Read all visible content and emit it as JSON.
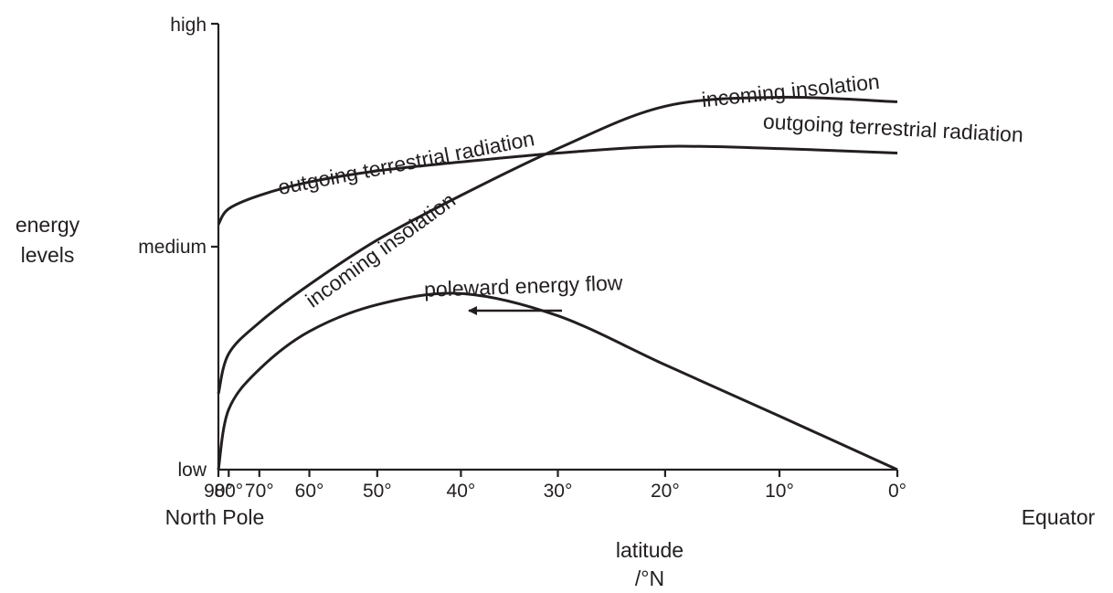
{
  "chart_data": {
    "type": "line",
    "title": "",
    "xlabel": "latitude",
    "xlabel_unit": "/°N",
    "ylabel": "energy levels",
    "ylabel_lines": [
      "energy",
      "levels"
    ],
    "x_ticks": [
      {
        "value": 90,
        "label": "90°"
      },
      {
        "value": 80,
        "label": "80°"
      },
      {
        "value": 70,
        "label": "70°"
      },
      {
        "value": 60,
        "label": "60°"
      },
      {
        "value": 50,
        "label": "50°"
      },
      {
        "value": 40,
        "label": "40°"
      },
      {
        "value": 30,
        "label": "30°"
      },
      {
        "value": 20,
        "label": "20°"
      },
      {
        "value": 10,
        "label": "10°"
      },
      {
        "value": 0,
        "label": "0°"
      }
    ],
    "x_end_labels": {
      "left": "North Pole",
      "right": "Equator"
    },
    "y_ticks": [
      {
        "value": 0,
        "label": "low"
      },
      {
        "value": 1,
        "label": "medium"
      },
      {
        "value": 2,
        "label": "high"
      }
    ],
    "xlim": [
      90,
      0
    ],
    "ylim": [
      0,
      2
    ],
    "x_scale": "sine of latitude (poleward latitudes compressed)",
    "grid": false,
    "series": [
      {
        "name": "outgoing terrestrial radiation",
        "x": [
          90,
          80,
          70,
          60,
          50,
          40,
          30,
          20,
          10,
          0
        ],
        "y": [
          1.1,
          1.17,
          1.23,
          1.29,
          1.34,
          1.38,
          1.42,
          1.45,
          1.44,
          1.42
        ]
      },
      {
        "name": "incoming insolation",
        "x": [
          90,
          80,
          70,
          60,
          50,
          40,
          30,
          20,
          10,
          0
        ],
        "y": [
          0.34,
          0.52,
          0.66,
          0.83,
          1.03,
          1.23,
          1.44,
          1.63,
          1.67,
          1.65
        ]
      },
      {
        "name": "poleward energy flow",
        "x": [
          90,
          80,
          70,
          60,
          50,
          40,
          30,
          20,
          10,
          0
        ],
        "y": [
          0.0,
          0.27,
          0.45,
          0.62,
          0.74,
          0.79,
          0.69,
          0.47,
          0.24,
          0.0
        ]
      }
    ],
    "annotations": [
      {
        "text": "outgoing terrestrial radiation"
      },
      {
        "text": "incoming insolation"
      },
      {
        "text": "incoming insolation"
      },
      {
        "text": "outgoing terrestrial radiation"
      },
      {
        "text": "poleward energy flow"
      },
      {
        "text": "arrow pointing toward the North Pole",
        "kind": "arrow"
      }
    ]
  }
}
